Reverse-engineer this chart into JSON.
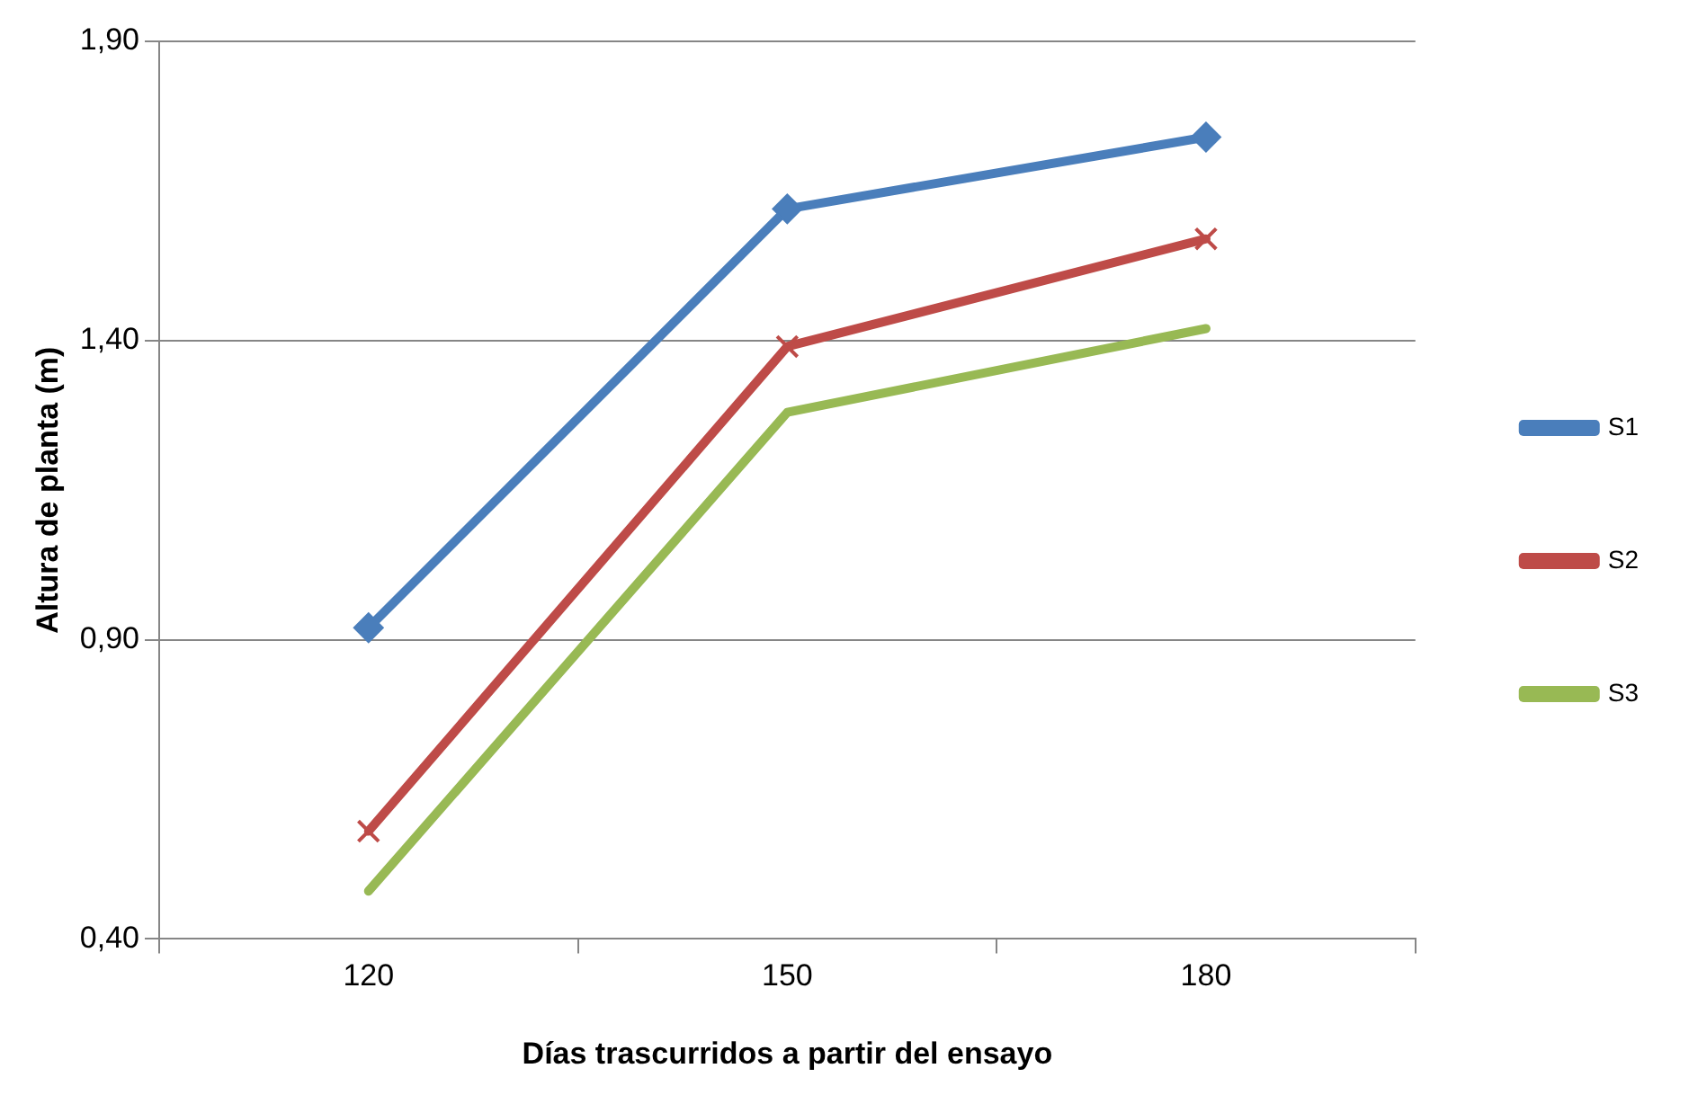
{
  "chart_data": {
    "type": "line",
    "xlabel": "Días trascurridos a partir del ensayo",
    "ylabel": "Altura de planta (m)",
    "categories": [
      "120",
      "150",
      "180"
    ],
    "series": [
      {
        "name": "S1",
        "color": "#4a7ebb",
        "values": [
          0.92,
          1.62,
          1.74
        ],
        "marker": "diamond"
      },
      {
        "name": "S2",
        "color": "#be4b48",
        "values": [
          0.58,
          1.39,
          1.57
        ],
        "marker": "cross"
      },
      {
        "name": "S3",
        "color": "#98b954",
        "values": [
          0.48,
          1.28,
          1.42
        ],
        "marker": "none"
      }
    ],
    "ylim": [
      0.4,
      1.9
    ],
    "yticks": [
      {
        "value": 0.4,
        "label": "0,40"
      },
      {
        "value": 0.9,
        "label": "0,90"
      },
      {
        "value": 1.4,
        "label": "1,40"
      },
      {
        "value": 1.9,
        "label": "1,90"
      }
    ],
    "grid": "y",
    "legend": "right",
    "line_style": "solid"
  }
}
